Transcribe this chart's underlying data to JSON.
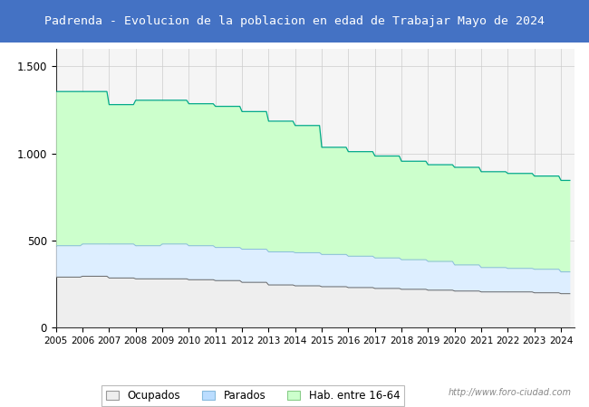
{
  "title": "Padrenda - Evolucion de la poblacion en edad de Trabajar Mayo de 2024",
  "title_bg_color": "#4472C4",
  "title_text_color": "#FFFFFF",
  "years": [
    2005,
    2006,
    2007,
    2008,
    2009,
    2010,
    2011,
    2012,
    2013,
    2014,
    2015,
    2016,
    2017,
    2018,
    2019,
    2020,
    2021,
    2022,
    2023,
    2024
  ],
  "hab_16_64": [
    1355,
    1355,
    1280,
    1305,
    1305,
    1285,
    1270,
    1240,
    1185,
    1160,
    1035,
    1010,
    985,
    955,
    935,
    920,
    895,
    885,
    870,
    845
  ],
  "parados_total": [
    470,
    480,
    480,
    470,
    480,
    470,
    460,
    450,
    435,
    430,
    420,
    410,
    400,
    390,
    380,
    360,
    345,
    340,
    335,
    320
  ],
  "ocupados_total": [
    290,
    295,
    285,
    280,
    280,
    275,
    270,
    260,
    245,
    240,
    235,
    230,
    225,
    220,
    215,
    210,
    205,
    205,
    200,
    195
  ],
  "ylim": [
    0,
    1600
  ],
  "yticks": [
    0,
    500,
    1000,
    1500
  ],
  "ytick_labels": [
    "0",
    "500",
    "1.000",
    "1.500"
  ],
  "color_hab": "#CCFFCC",
  "color_parados": "#DDEEFF",
  "color_ocupados": "#EEEEEE",
  "color_border_hab": "#00AA88",
  "color_border_parados": "#88BBDD",
  "color_border_ocupados": "#666666",
  "watermark": "http://www.foro-ciudad.com",
  "legend_labels": [
    "Ocupados",
    "Parados",
    "Hab. entre 16-64"
  ],
  "legend_colors_face": [
    "#EEEEEE",
    "#BBDDFF",
    "#CCFFCC"
  ],
  "legend_colors_edge": [
    "#999999",
    "#88BBDD",
    "#88CC88"
  ]
}
